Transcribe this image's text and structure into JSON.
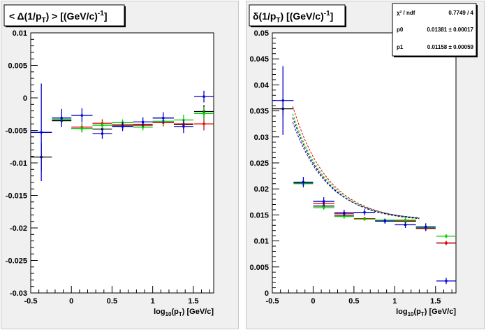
{
  "colors": {
    "black": "#000000",
    "red": "#dd0000",
    "green": "#00cc00",
    "blue": "#0000cc",
    "pad_bg": "#f0f0f0"
  },
  "chart_data": [
    {
      "type": "scatter",
      "title": "< Δ(1/p_{T}) >  [(GeV/c)^{-1}]",
      "title_parts": {
        "pre": "< Δ(1/p",
        "sub1": "T",
        "mid": ") >  [(GeV/c)",
        "sup": "-1",
        "post": "]"
      },
      "xlabel": "log_{10}(p_{T})  [GeV/c]",
      "xlabel_parts": {
        "a": "log",
        "sub1": "10",
        "b": "(p",
        "sub2": "T",
        "c": ")  [GeV/c]"
      },
      "xlim": [
        -0.5,
        1.75
      ],
      "ylim": [
        -0.03,
        0.01
      ],
      "xticks": [
        "-0.5",
        "0",
        "0.5",
        "1",
        "1.5"
      ],
      "xtick_values": [
        -0.5,
        0,
        0.5,
        1,
        1.5
      ],
      "yticks": [
        "0.01",
        "0.005",
        "0",
        "-0.005",
        "-0.01",
        "-0.015",
        "-0.02",
        "-0.025",
        "-0.03"
      ],
      "ytick_values": [
        0.01,
        0.005,
        0,
        -0.005,
        -0.01,
        -0.015,
        -0.02,
        -0.025,
        -0.03
      ],
      "series": [
        {
          "color": "black",
          "points": [
            {
              "x": -0.37,
              "y": -0.0091,
              "xerr": 0.13,
              "yerr": 0.0022
            },
            {
              "x": -0.12,
              "y": -0.0035,
              "xerr": 0.12,
              "yerr": 0.0005
            },
            {
              "x": 0.13,
              "y": -0.0047,
              "xerr": 0.13,
              "yerr": 0.0006
            },
            {
              "x": 0.38,
              "y": -0.0048,
              "xerr": 0.12,
              "yerr": 0.0006
            },
            {
              "x": 0.63,
              "y": -0.0043,
              "xerr": 0.13,
              "yerr": 0.0005
            },
            {
              "x": 0.88,
              "y": -0.0041,
              "xerr": 0.12,
              "yerr": 0.0005
            },
            {
              "x": 1.13,
              "y": -0.0036,
              "xerr": 0.13,
              "yerr": 0.0006
            },
            {
              "x": 1.38,
              "y": -0.0041,
              "xerr": 0.12,
              "yerr": 0.0008
            },
            {
              "x": 1.63,
              "y": -0.0021,
              "xerr": 0.12,
              "yerr": 0.001
            }
          ]
        },
        {
          "color": "red",
          "points": [
            {
              "x": 0.13,
              "y": -0.0045,
              "xerr": 0.13,
              "yerr": 0.0006
            },
            {
              "x": 0.38,
              "y": -0.0039,
              "xerr": 0.12,
              "yerr": 0.0006
            },
            {
              "x": 0.63,
              "y": -0.0041,
              "xerr": 0.13,
              "yerr": 0.0005
            },
            {
              "x": 0.88,
              "y": -0.0042,
              "xerr": 0.12,
              "yerr": 0.0005
            },
            {
              "x": 1.13,
              "y": -0.0038,
              "xerr": 0.13,
              "yerr": 0.0006
            },
            {
              "x": 1.38,
              "y": -0.004,
              "xerr": 0.12,
              "yerr": 0.0008
            },
            {
              "x": 1.63,
              "y": -0.004,
              "xerr": 0.12,
              "yerr": 0.001
            }
          ]
        },
        {
          "color": "green",
          "points": [
            {
              "x": -0.12,
              "y": -0.0033,
              "xerr": 0.12,
              "yerr": 0.0005
            },
            {
              "x": 0.13,
              "y": -0.0047,
              "xerr": 0.13,
              "yerr": 0.0006
            },
            {
              "x": 0.38,
              "y": -0.0042,
              "xerr": 0.12,
              "yerr": 0.0006
            },
            {
              "x": 0.63,
              "y": -0.0038,
              "xerr": 0.13,
              "yerr": 0.0005
            },
            {
              "x": 0.88,
              "y": -0.0045,
              "xerr": 0.12,
              "yerr": 0.0005
            },
            {
              "x": 1.13,
              "y": -0.0036,
              "xerr": 0.13,
              "yerr": 0.0006
            },
            {
              "x": 1.38,
              "y": -0.0034,
              "xerr": 0.12,
              "yerr": 0.0008
            },
            {
              "x": 1.63,
              "y": -0.0024,
              "xerr": 0.12,
              "yerr": 0.001
            }
          ]
        },
        {
          "color": "blue",
          "points": [
            {
              "x": -0.37,
              "y": -0.0053,
              "xerr": 0.13,
              "yerr": 0.0075
            },
            {
              "x": -0.12,
              "y": -0.0031,
              "xerr": 0.12,
              "yerr": 0.0014
            },
            {
              "x": 0.13,
              "y": -0.0027,
              "xerr": 0.13,
              "yerr": 0.0011
            },
            {
              "x": 0.38,
              "y": -0.0055,
              "xerr": 0.12,
              "yerr": 0.0008
            },
            {
              "x": 0.63,
              "y": -0.0044,
              "xerr": 0.13,
              "yerr": 0.0007
            },
            {
              "x": 0.88,
              "y": -0.0037,
              "xerr": 0.12,
              "yerr": 0.0007
            },
            {
              "x": 1.13,
              "y": -0.0031,
              "xerr": 0.13,
              "yerr": 0.0009
            },
            {
              "x": 1.38,
              "y": -0.0044,
              "xerr": 0.12,
              "yerr": 0.001
            },
            {
              "x": 1.63,
              "y": 0.0002,
              "xerr": 0.12,
              "yerr": 0.0009
            }
          ]
        }
      ]
    },
    {
      "type": "scatter",
      "title": "δ(1/p_{T})  [(GeV/c)^{-1}]",
      "title_parts": {
        "pre": "δ(1/p",
        "sub1": "T",
        "mid": ")  [(GeV/c)",
        "sup": "-1",
        "post": "]"
      },
      "xlabel": "log_{10}(p_{T})  [GeV/c]",
      "xlabel_parts": {
        "a": "log",
        "sub1": "10",
        "b": "(p",
        "sub2": "T",
        "c": ")  [GeV/c]"
      },
      "xlim": [
        -0.5,
        1.75
      ],
      "ylim": [
        0,
        0.05
      ],
      "xticks": [
        "-0.5",
        "0",
        "0.5",
        "1",
        "1.5"
      ],
      "xtick_values": [
        -0.5,
        0,
        0.5,
        1,
        1.5
      ],
      "yticks": [
        "0.05",
        "0.045",
        "0.04",
        "0.035",
        "0.03",
        "0.025",
        "0.02",
        "0.015",
        "0.01",
        "0.005",
        "0"
      ],
      "ytick_values": [
        0.05,
        0.045,
        0.04,
        0.035,
        0.03,
        0.025,
        0.02,
        0.015,
        0.01,
        0.005,
        0
      ],
      "stats_box": {
        "rows": [
          {
            "label": "χ² / ndf",
            "value": "0.7749 / 4"
          },
          {
            "label": "p0",
            "value": "0.01381 ± 0.00017"
          },
          {
            "label": "p1",
            "value": "0.01158 ± 0.00059"
          }
        ]
      },
      "fit_curves": [
        {
          "color": "red",
          "p0": 0.01374,
          "p1": 0.01245,
          "xrange": [
            -0.25,
            1.3
          ]
        },
        {
          "color": "black",
          "p0": 0.01372,
          "p1": 0.01124,
          "xrange": [
            -0.25,
            1.3
          ]
        },
        {
          "color": "green",
          "p0": 0.01381,
          "p1": 0.01158,
          "xrange": [
            -0.25,
            1.3
          ]
        },
        {
          "color": "blue",
          "p0": 0.01392,
          "p1": 0.01063,
          "xrange": [
            -0.25,
            1.3
          ]
        }
      ],
      "series": [
        {
          "color": "black",
          "points": [
            {
              "x": -0.37,
              "y": 0.0354,
              "xerr": 0.13,
              "yerr": 0.0013
            },
            {
              "x": -0.12,
              "y": 0.0211,
              "xerr": 0.12,
              "yerr": 0.0004
            },
            {
              "x": 0.13,
              "y": 0.0167,
              "xerr": 0.13,
              "yerr": 0.0004
            },
            {
              "x": 0.38,
              "y": 0.0148,
              "xerr": 0.12,
              "yerr": 0.0004
            },
            {
              "x": 0.63,
              "y": 0.0142,
              "xerr": 0.13,
              "yerr": 0.0003
            },
            {
              "x": 0.88,
              "y": 0.0139,
              "xerr": 0.12,
              "yerr": 0.0003
            },
            {
              "x": 1.13,
              "y": 0.0138,
              "xerr": 0.13,
              "yerr": 0.0004
            },
            {
              "x": 1.38,
              "y": 0.0124,
              "xerr": 0.12,
              "yerr": 0.0005
            },
            {
              "x": 1.63,
              "y": 0.0096,
              "xerr": 0.12,
              "yerr": 0.0004
            }
          ]
        },
        {
          "color": "red",
          "points": [
            {
              "x": 0.13,
              "y": 0.0172,
              "xerr": 0.13,
              "yerr": 0.0004
            },
            {
              "x": 0.38,
              "y": 0.0152,
              "xerr": 0.12,
              "yerr": 0.0004
            },
            {
              "x": 0.63,
              "y": 0.0143,
              "xerr": 0.13,
              "yerr": 0.0003
            },
            {
              "x": 0.88,
              "y": 0.0138,
              "xerr": 0.12,
              "yerr": 0.0003
            },
            {
              "x": 1.13,
              "y": 0.0139,
              "xerr": 0.13,
              "yerr": 0.0004
            },
            {
              "x": 1.38,
              "y": 0.0125,
              "xerr": 0.12,
              "yerr": 0.0005
            },
            {
              "x": 1.63,
              "y": 0.0096,
              "xerr": 0.12,
              "yerr": 0.0004
            }
          ]
        },
        {
          "color": "green",
          "points": [
            {
              "x": -0.12,
              "y": 0.021,
              "xerr": 0.12,
              "yerr": 0.0004
            },
            {
              "x": 0.13,
              "y": 0.0164,
              "xerr": 0.13,
              "yerr": 0.0004
            },
            {
              "x": 0.38,
              "y": 0.0147,
              "xerr": 0.12,
              "yerr": 0.0004
            },
            {
              "x": 0.63,
              "y": 0.0142,
              "xerr": 0.13,
              "yerr": 0.0003
            },
            {
              "x": 0.88,
              "y": 0.014,
              "xerr": 0.12,
              "yerr": 0.0003
            },
            {
              "x": 1.13,
              "y": 0.014,
              "xerr": 0.13,
              "yerr": 0.0004
            },
            {
              "x": 1.38,
              "y": 0.0126,
              "xerr": 0.12,
              "yerr": 0.0005
            },
            {
              "x": 1.63,
              "y": 0.0109,
              "xerr": 0.12,
              "yerr": 0.0004
            }
          ]
        },
        {
          "color": "blue",
          "points": [
            {
              "x": -0.37,
              "y": 0.037,
              "xerr": 0.13,
              "yerr": 0.0066
            },
            {
              "x": -0.12,
              "y": 0.0213,
              "xerr": 0.12,
              "yerr": 0.001
            },
            {
              "x": 0.13,
              "y": 0.0176,
              "xerr": 0.13,
              "yerr": 0.0008
            },
            {
              "x": 0.38,
              "y": 0.0154,
              "xerr": 0.12,
              "yerr": 0.0006
            },
            {
              "x": 0.63,
              "y": 0.0155,
              "xerr": 0.13,
              "yerr": 0.0006
            },
            {
              "x": 0.88,
              "y": 0.0138,
              "xerr": 0.12,
              "yerr": 0.0005
            },
            {
              "x": 1.13,
              "y": 0.0131,
              "xerr": 0.13,
              "yerr": 0.0006
            },
            {
              "x": 1.38,
              "y": 0.0127,
              "xerr": 0.12,
              "yerr": 0.0007
            },
            {
              "x": 1.63,
              "y": 0.0023,
              "xerr": 0.12,
              "yerr": 0.0006
            }
          ]
        }
      ]
    }
  ]
}
